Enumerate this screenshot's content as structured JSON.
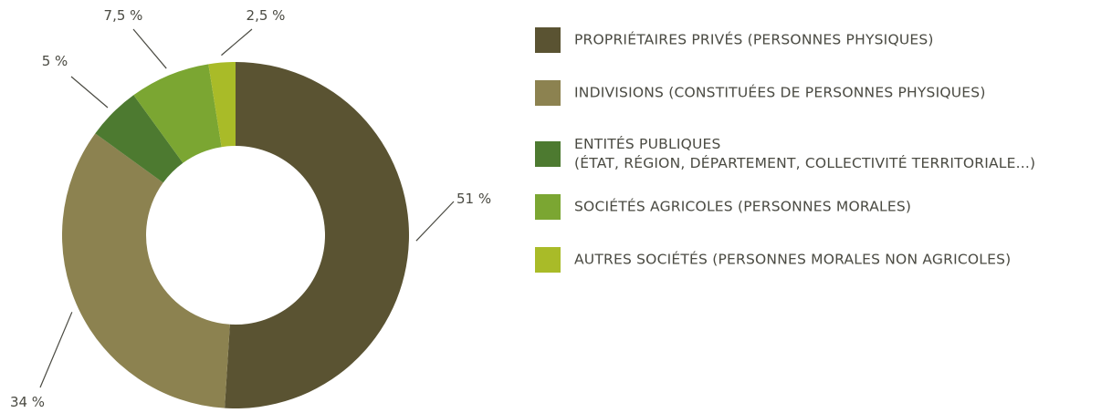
{
  "chart_data": {
    "type": "pie",
    "variant": "donut",
    "slices": [
      {
        "name": "PROPRIÉTAIRES PRIVÉS (PERSONNES PHYSIQUES)",
        "value": 51,
        "label": "51 %",
        "color": "#5a5332"
      },
      {
        "name": "INDIVISIONS (CONSTITUÉES DE PERSONNES PHYSIQUES)",
        "value": 34,
        "label": "34 %",
        "color": "#8c8250"
      },
      {
        "name": "ENTITÉS PUBLIQUES",
        "name_line2": "(ÉTAT, RÉGION, DÉPARTEMENT, COLLECTIVITÉ TERRITORIALE...)",
        "value": 5,
        "label": "5 %",
        "color": "#4d7a30"
      },
      {
        "name": "SOCIÉTÉS AGRICOLES (PERSONNES MORALES)",
        "value": 7.5,
        "label": "7,5 %",
        "color": "#7ba632"
      },
      {
        "name": "AUTRES SOCIÉTÉS (PERSONNES MORALES NON AGRICOLES)",
        "value": 2.5,
        "label": "2,5 %",
        "color": "#a9bb28"
      }
    ],
    "legend_position": "right"
  }
}
